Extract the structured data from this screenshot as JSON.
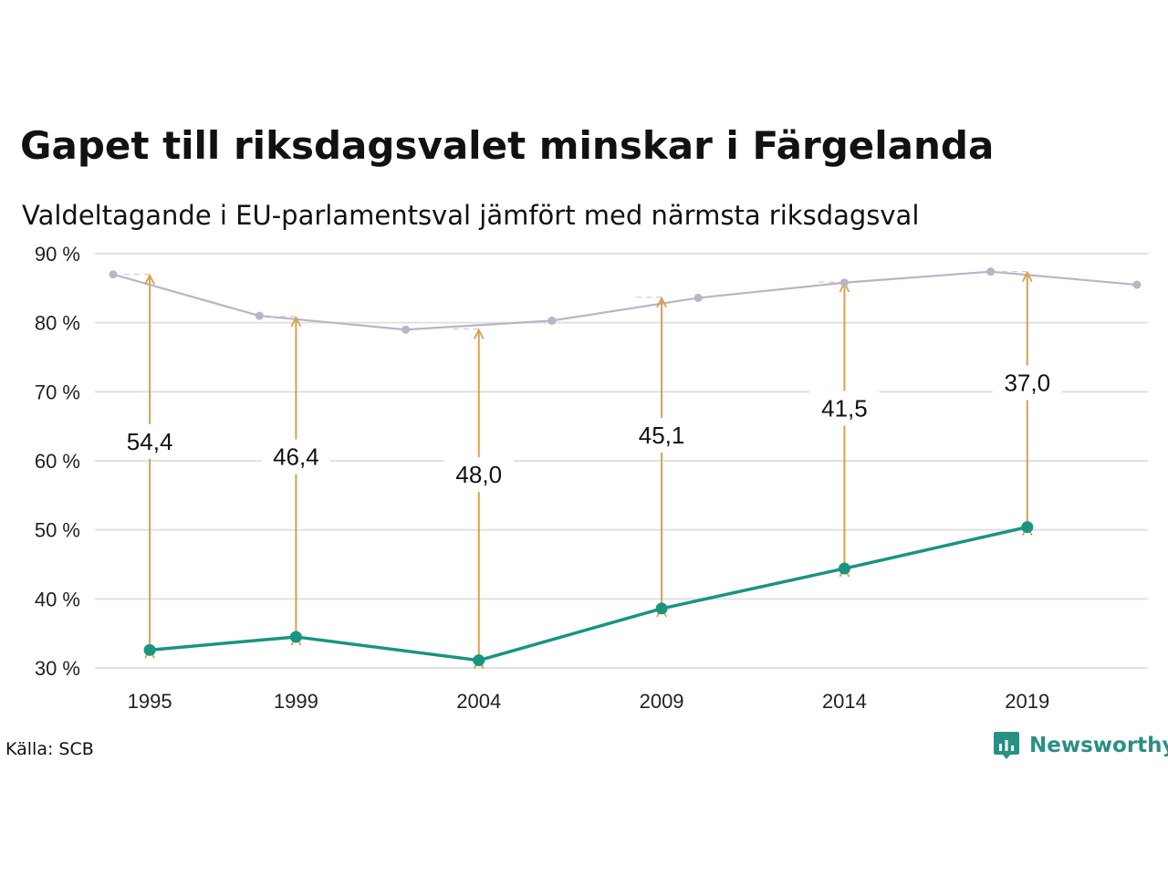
{
  "title": "Gapet till riksdagsvalet minskar i Färgelanda",
  "subtitle": "Valdeltagande i EU-parlamentsval jämfört med närmsta riksdagsval",
  "source": "Källa: SCB",
  "brand": {
    "name": "Newsworthy",
    "icon": "newsworthy-logo-icon",
    "color": "#2b8f83"
  },
  "chart_data": {
    "type": "line",
    "x_axis_type": "year",
    "xlim": [
      1993.5,
      2022.3
    ],
    "ylim": [
      30,
      90
    ],
    "yticks": [
      30,
      40,
      50,
      60,
      70,
      80,
      90
    ],
    "ytick_labels": [
      "30 %",
      "40 %",
      "50 %",
      "60 %",
      "70 %",
      "80 %",
      "90 %"
    ],
    "xticks": [
      1995,
      1999,
      2004,
      2009,
      2014,
      2019
    ],
    "xtick_labels": [
      "1995",
      "1999",
      "2004",
      "2009",
      "2014",
      "2019"
    ],
    "grid": true,
    "series": [
      {
        "role": "riksdagsval",
        "color": "#b7b5c8",
        "points": [
          [
            1994,
            87.0
          ],
          [
            1998,
            81.0
          ],
          [
            2002,
            79.0
          ],
          [
            2006,
            80.3
          ],
          [
            2010,
            83.6
          ],
          [
            2014,
            85.8
          ],
          [
            2018,
            87.4
          ],
          [
            2022,
            85.5
          ]
        ]
      },
      {
        "role": "eu-parlamentsval",
        "color": "#1a9480",
        "points": [
          [
            1995,
            32.6
          ],
          [
            1999,
            34.5
          ],
          [
            2004,
            31.1
          ],
          [
            2009,
            38.6
          ],
          [
            2014,
            44.4
          ],
          [
            2019,
            50.4
          ]
        ]
      }
    ],
    "gaps": [
      {
        "year": 1995,
        "from": 32.6,
        "to": 87.0,
        "label": "54,4",
        "label_at": 62.8
      },
      {
        "year": 1999,
        "from": 34.5,
        "to": 80.9,
        "label": "46,4",
        "label_at": 60.6
      },
      {
        "year": 2004,
        "from": 31.1,
        "to": 79.1,
        "label": "48,0",
        "label_at": 58.0
      },
      {
        "year": 2009,
        "from": 38.6,
        "to": 83.7,
        "label": "45,1",
        "label_at": 63.7
      },
      {
        "year": 2014,
        "from": 44.4,
        "to": 85.9,
        "label": "41,5",
        "label_at": 67.6
      },
      {
        "year": 2019,
        "from": 50.4,
        "to": 87.4,
        "label": "37,0",
        "label_at": 71.3
      }
    ],
    "colors": {
      "gap_arrow": "#d8a14e",
      "grid": "#e1e1e1"
    }
  }
}
